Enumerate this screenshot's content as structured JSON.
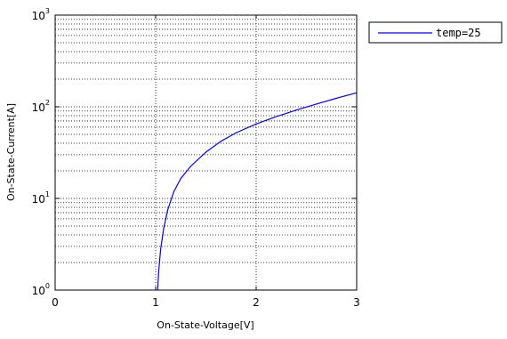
{
  "chart_data": {
    "type": "line",
    "xlabel": "On-State-Voltage[V]",
    "ylabel": "On-State-Current[A]",
    "xlim": [
      0,
      3
    ],
    "ylim": [
      1,
      1000
    ],
    "yscale": "log",
    "grid": true,
    "legend_position": "outside-top-right",
    "x_ticks": [
      "0",
      "1",
      "2",
      "3"
    ],
    "y_ticks": [
      {
        "base": "10",
        "exp": "0",
        "value": 1
      },
      {
        "base": "10",
        "exp": "1",
        "value": 10
      },
      {
        "base": "10",
        "exp": "2",
        "value": 100
      },
      {
        "base": "10",
        "exp": "3",
        "value": 1000
      }
    ],
    "series": [
      {
        "name": "temp=25",
        "color": "#0000ff",
        "x": [
          1.02,
          1.03,
          1.05,
          1.08,
          1.12,
          1.18,
          1.25,
          1.35,
          1.5,
          1.65,
          1.8,
          2.0,
          2.2,
          2.4,
          2.6,
          2.8,
          3.0
        ],
        "y": [
          1.0,
          1.6,
          2.8,
          4.7,
          7.5,
          11.8,
          16.5,
          22.5,
          32.0,
          42.0,
          52.0,
          65.0,
          78.0,
          92.0,
          107.0,
          124.0,
          142.0
        ]
      }
    ]
  }
}
